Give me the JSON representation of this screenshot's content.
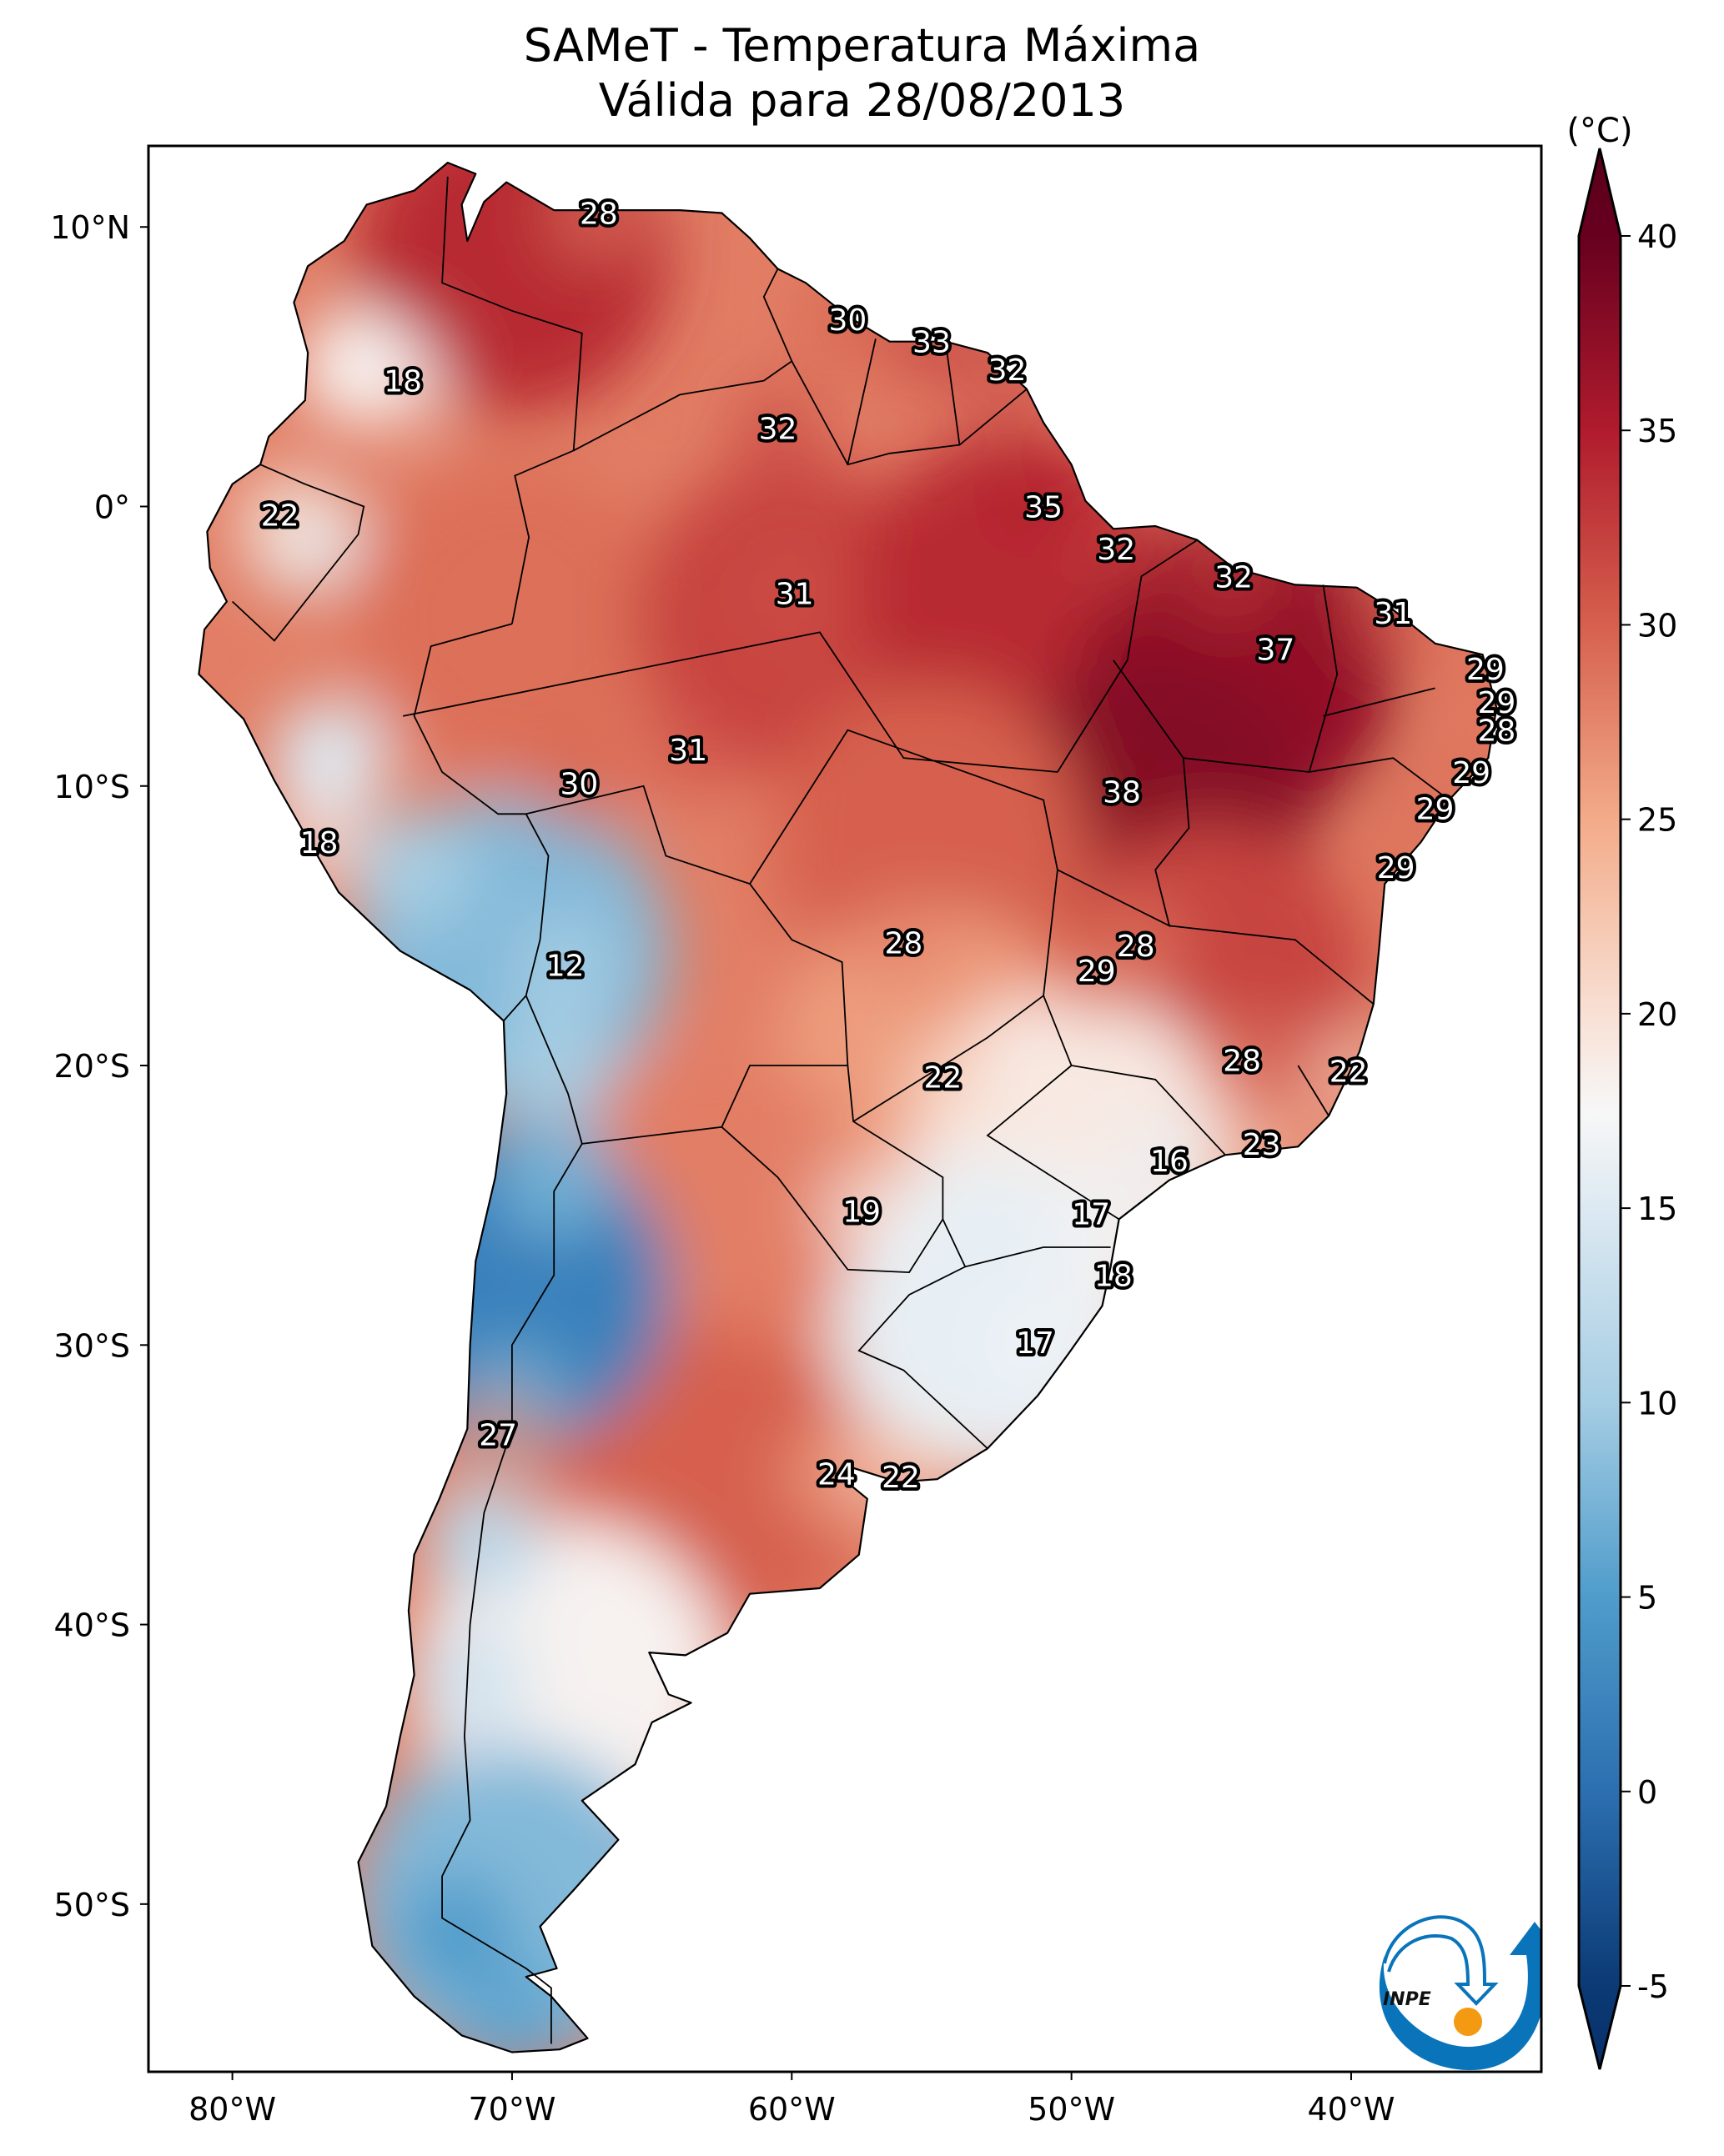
{
  "title": {
    "line1": "SAMeT - Temperatura Máxima",
    "line2": "Válida para 28/08/2013"
  },
  "logo": {
    "text": "INPE",
    "colors": {
      "blue": "#0a74bb",
      "orange": "#f39a12"
    }
  },
  "chart_data": {
    "type": "heatmap",
    "title": "SAMeT - Temperatura Máxima — Válida para 28/08/2013",
    "variable": "Maximum temperature",
    "region": "South America",
    "projection": "PlateCarree",
    "xlim": [
      -83.0,
      -33.2
    ],
    "ylim": [
      -56.0,
      12.9
    ],
    "x_ticks": [
      -80,
      -70,
      -60,
      -50,
      -40
    ],
    "x_tick_labels": [
      "80°W",
      "70°W",
      "60°W",
      "50°W",
      "40°W"
    ],
    "y_ticks": [
      10,
      0,
      -10,
      -20,
      -30,
      -40,
      -50
    ],
    "y_tick_labels": [
      "10°N",
      "0°",
      "10°S",
      "20°S",
      "30°S",
      "40°S",
      "50°S"
    ],
    "colorbar": {
      "label": "(°C)",
      "cmap": "RdBu_r",
      "vmin": -5,
      "vmax": 40,
      "extend": "both",
      "ticks": [
        40,
        35,
        30,
        25,
        20,
        15,
        10,
        5,
        0,
        -5
      ],
      "tick_labels": [
        "40",
        "35",
        "30",
        "25",
        "20",
        "15",
        "10",
        "5",
        "0",
        "-5"
      ],
      "stops": [
        {
          "v": -7,
          "c": "#08306b"
        },
        {
          "v": -5,
          "c": "#0b3a75"
        },
        {
          "v": 0,
          "c": "#2c6fb0"
        },
        {
          "v": 5,
          "c": "#4f9ccb"
        },
        {
          "v": 10,
          "c": "#a5cde3"
        },
        {
          "v": 15,
          "c": "#dde9f2"
        },
        {
          "v": 17.5,
          "c": "#f7f7f7"
        },
        {
          "v": 20,
          "c": "#f8e0d4"
        },
        {
          "v": 25,
          "c": "#f3ab89"
        },
        {
          "v": 30,
          "c": "#d6604d"
        },
        {
          "v": 35,
          "c": "#b01b2d"
        },
        {
          "v": 40,
          "c": "#67001f"
        },
        {
          "v": 42,
          "c": "#5a001a"
        }
      ]
    },
    "annotations": [
      {
        "lon": -66.9,
        "lat": 10.5,
        "value": 28
      },
      {
        "lon": -73.9,
        "lat": 4.5,
        "value": 18
      },
      {
        "lon": -58.0,
        "lat": 6.7,
        "value": 30
      },
      {
        "lon": -55.0,
        "lat": 5.9,
        "value": 33
      },
      {
        "lon": -52.3,
        "lat": 4.9,
        "value": 32
      },
      {
        "lon": -60.5,
        "lat": 2.8,
        "value": 32
      },
      {
        "lon": -78.3,
        "lat": -0.3,
        "value": 22
      },
      {
        "lon": -51.0,
        "lat": 0.0,
        "value": 35
      },
      {
        "lon": -48.4,
        "lat": -1.5,
        "value": 32
      },
      {
        "lon": -59.9,
        "lat": -3.1,
        "value": 31
      },
      {
        "lon": -44.2,
        "lat": -2.5,
        "value": 32
      },
      {
        "lon": -38.5,
        "lat": -3.8,
        "value": 31
      },
      {
        "lon": -42.7,
        "lat": -5.1,
        "value": 37
      },
      {
        "lon": -35.2,
        "lat": -5.8,
        "value": 29
      },
      {
        "lon": -34.8,
        "lat": -7.0,
        "value": 29
      },
      {
        "lon": -34.8,
        "lat": -8.0,
        "value": 28
      },
      {
        "lon": -35.7,
        "lat": -9.5,
        "value": 29
      },
      {
        "lon": -63.7,
        "lat": -8.7,
        "value": 31
      },
      {
        "lon": -67.6,
        "lat": -9.9,
        "value": 30
      },
      {
        "lon": -48.2,
        "lat": -10.2,
        "value": 38
      },
      {
        "lon": -37.0,
        "lat": -10.8,
        "value": 29
      },
      {
        "lon": -76.9,
        "lat": -12.0,
        "value": 18
      },
      {
        "lon": -38.4,
        "lat": -12.9,
        "value": 29
      },
      {
        "lon": -68.1,
        "lat": -16.4,
        "value": 12
      },
      {
        "lon": -56.0,
        "lat": -15.6,
        "value": 28
      },
      {
        "lon": -47.7,
        "lat": -15.7,
        "value": 28
      },
      {
        "lon": -49.1,
        "lat": -16.6,
        "value": 29
      },
      {
        "lon": -54.6,
        "lat": -20.4,
        "value": 22
      },
      {
        "lon": -43.9,
        "lat": -19.8,
        "value": 28
      },
      {
        "lon": -40.1,
        "lat": -20.2,
        "value": 22
      },
      {
        "lon": -43.2,
        "lat": -22.8,
        "value": 23
      },
      {
        "lon": -46.5,
        "lat": -23.4,
        "value": 16
      },
      {
        "lon": -57.5,
        "lat": -25.2,
        "value": 19
      },
      {
        "lon": -49.3,
        "lat": -25.3,
        "value": 17
      },
      {
        "lon": -48.5,
        "lat": -27.5,
        "value": 18
      },
      {
        "lon": -51.3,
        "lat": -29.9,
        "value": 17
      },
      {
        "lon": -70.5,
        "lat": -33.2,
        "value": 27
      },
      {
        "lon": -58.4,
        "lat": -34.6,
        "value": 24
      },
      {
        "lon": -56.1,
        "lat": -34.7,
        "value": 22
      }
    ],
    "field_regions": [
      {
        "name": "northern-coast-venezuela-colombia",
        "lon": -70,
        "lat": 9,
        "value": 34
      },
      {
        "name": "amazon-west",
        "lon": -70,
        "lat": -4,
        "value": 29
      },
      {
        "name": "amazon-central",
        "lon": -60,
        "lat": -4,
        "value": 32
      },
      {
        "name": "para",
        "lon": -52,
        "lat": -3,
        "value": 34
      },
      {
        "name": "maranhao-piaui",
        "lon": -44,
        "lat": -6,
        "value": 37
      },
      {
        "name": "tocantins-bahia",
        "lon": -47,
        "lat": -11,
        "value": 38
      },
      {
        "name": "mato-grosso",
        "lon": -55,
        "lat": -12,
        "value": 30
      },
      {
        "name": "minas-gerais",
        "lon": -45,
        "lat": -17,
        "value": 32
      },
      {
        "name": "mato-grosso-do-sul",
        "lon": -55,
        "lat": -20,
        "value": 26
      },
      {
        "name": "sao-paulo-parana",
        "lon": -50,
        "lat": -23,
        "value": 19
      },
      {
        "name": "rio-grande-do-sul",
        "lon": -53,
        "lat": -29,
        "value": 16
      },
      {
        "name": "chaco-argentina",
        "lon": -63,
        "lat": -25,
        "value": 28
      },
      {
        "name": "pampas",
        "lon": -63,
        "lat": -35,
        "value": 30
      },
      {
        "name": "andes-peru-bolivia",
        "lon": -70,
        "lat": -16,
        "value": 8
      },
      {
        "name": "andes-chile-argentina",
        "lon": -70,
        "lat": -28,
        "value": 2
      },
      {
        "name": "patagonia-north",
        "lon": -68,
        "lat": -42,
        "value": 18
      },
      {
        "name": "patagonia-south",
        "lon": -70,
        "lat": -50,
        "value": 8
      }
    ]
  }
}
